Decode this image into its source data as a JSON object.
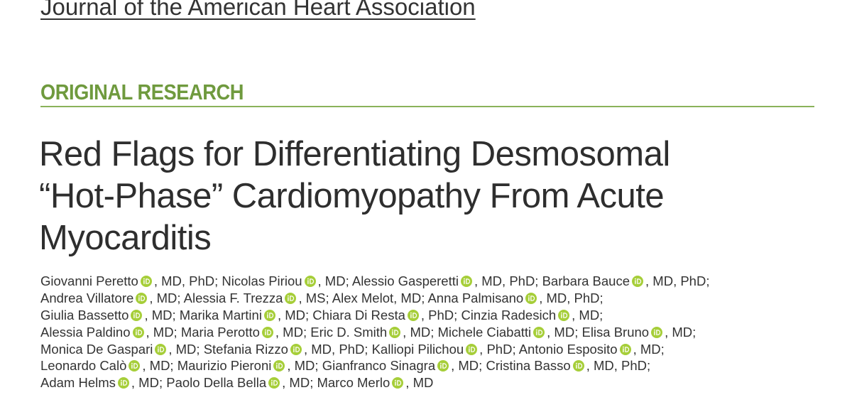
{
  "header": {
    "journal": "Journal of the American Heart Association"
  },
  "section": "ORIGINAL RESEARCH",
  "title": {
    "lines": [
      "Red Flags for Differentiating Desmosomal",
      "“Hot-Phase” Cardiomyopathy From Acute",
      "Myocarditis"
    ]
  },
  "authors": {
    "lines": [
      [
        {
          "name": "Giovanni Peretto",
          "suffix": ", MD, PhD;",
          "orcid": true
        },
        {
          "name": "Nicolas Piriou",
          "suffix": ", MD;",
          "orcid": true
        },
        {
          "name": "Alessio Gasperetti",
          "suffix": ", MD, PhD;",
          "orcid": true
        },
        {
          "name": "Barbara Bauce",
          "suffix": ", MD, PhD;",
          "orcid": true
        }
      ],
      [
        {
          "name": "Andrea Villatore",
          "suffix": ", MD;",
          "orcid": true
        },
        {
          "name": "Alessia F. Trezza",
          "suffix": ", MS;",
          "orcid": true
        },
        {
          "name": "Alex Melot",
          "suffix": ", MD;",
          "orcid": false
        },
        {
          "name": "Anna Palmisano",
          "suffix": ", MD, PhD;",
          "orcid": true
        }
      ],
      [
        {
          "name": "Giulia Bassetto",
          "suffix": ", MD;",
          "orcid": true
        },
        {
          "name": "Marika Martini",
          "suffix": ", MD;",
          "orcid": true
        },
        {
          "name": "Chiara Di Resta",
          "suffix": ", PhD;",
          "orcid": true
        },
        {
          "name": "Cinzia Radesich",
          "suffix": ", MD;",
          "orcid": true
        }
      ],
      [
        {
          "name": "Alessia Paldino",
          "suffix": ", MD;",
          "orcid": true
        },
        {
          "name": "Maria Perotto",
          "suffix": ", MD;",
          "orcid": true
        },
        {
          "name": "Eric D. Smith",
          "suffix": ", MD;",
          "orcid": true
        },
        {
          "name": "Michele Ciabatti",
          "suffix": ", MD;",
          "orcid": true
        },
        {
          "name": "Elisa Bruno",
          "suffix": ", MD;",
          "orcid": true
        }
      ],
      [
        {
          "name": "Monica De Gaspari",
          "suffix": ", MD;",
          "orcid": true
        },
        {
          "name": "Stefania Rizzo",
          "suffix": ", MD, PhD;",
          "orcid": true
        },
        {
          "name": "Kalliopi Pilichou",
          "suffix": ", PhD;",
          "orcid": true
        },
        {
          "name": "Antonio Esposito",
          "suffix": ", MD;",
          "orcid": true
        }
      ],
      [
        {
          "name": "Leonardo Calò",
          "suffix": ", MD;",
          "orcid": true
        },
        {
          "name": "Maurizio Pieroni",
          "suffix": ", MD;",
          "orcid": true
        },
        {
          "name": "Gianfranco Sinagra",
          "suffix": ", MD;",
          "orcid": true
        },
        {
          "name": "Cristina Basso",
          "suffix": ", MD, PhD;",
          "orcid": true
        }
      ],
      [
        {
          "name": "Adam Helms",
          "suffix": ", MD;",
          "orcid": true
        },
        {
          "name": "Paolo Della Bella",
          "suffix": ", MD;",
          "orcid": true
        },
        {
          "name": "Marco Merlo",
          "suffix": ", MD",
          "orcid": true
        }
      ]
    ]
  }
}
